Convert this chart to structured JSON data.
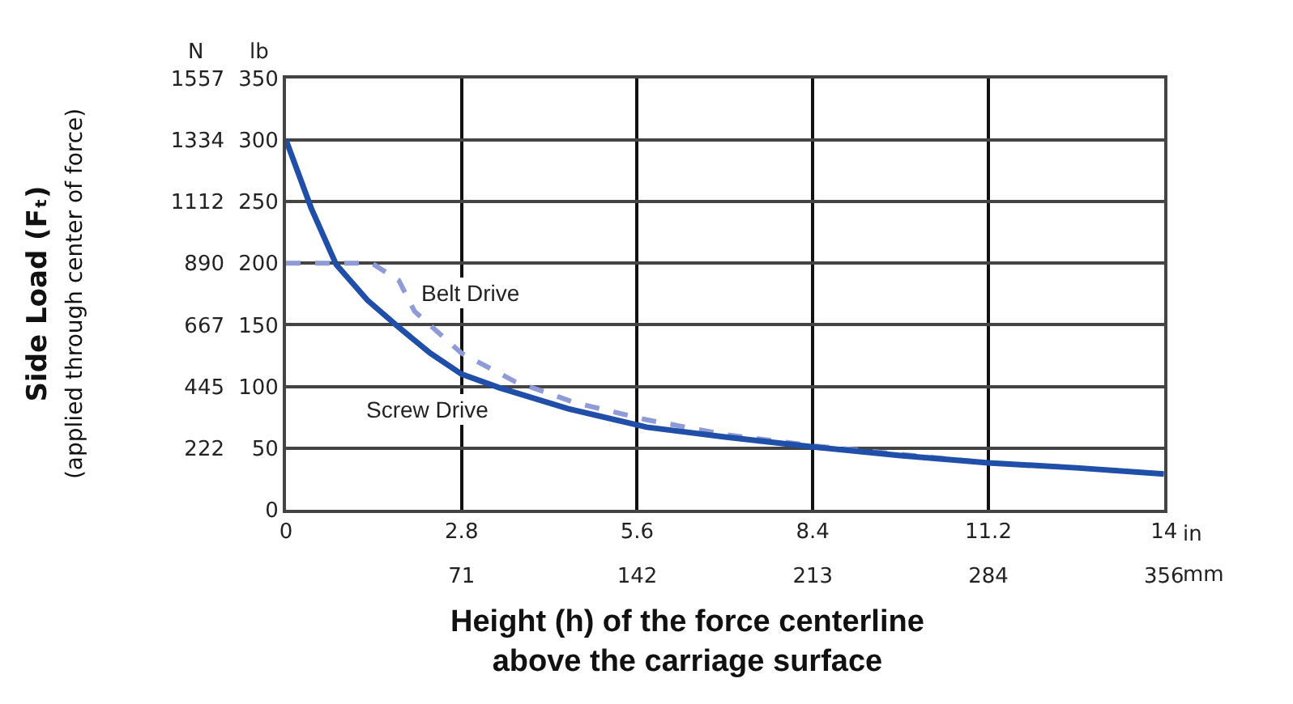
{
  "chart_data": {
    "type": "line",
    "xlabel": "Height (h) of the force centerline\nabove the carriage surface",
    "ylabel": "Side Load (Fₜ)\n(applied through center of force)",
    "x2label": "mm",
    "y2label": "lb",
    "annotations": [
      "in",
      "N",
      "Belt Drive",
      "Screw Drive"
    ],
    "series": [
      {
        "color": "#8f9bd6",
        "line_style": "dashed",
        "axis": "y2",
        "x": [
          0,
          1.37,
          1.8,
          2.05,
          2.8,
          3.65,
          4.6,
          5.75,
          7,
          8.4,
          9.8,
          11.2,
          12.6,
          14
        ],
        "values": [
          200,
          200,
          186,
          161,
          127,
          104,
          87,
          73,
          61,
          52,
          45,
          38,
          34,
          29
        ]
      },
      {
        "color": "#1f4fa8",
        "line_style": "solid",
        "axis": "y2",
        "x": [
          0,
          0.4,
          0.8,
          1.3,
          1.8,
          2.3,
          2.8,
          3.4,
          4.5,
          5.75,
          7,
          8.4,
          9.8,
          11.2,
          12.6,
          14
        ],
        "values": [
          300,
          245,
          199,
          170,
          148,
          127,
          110,
          99,
          82,
          67,
          59,
          51,
          44,
          38,
          34,
          29
        ]
      }
    ],
    "xlim": [
      0,
      14
    ],
    "xticks": [
      0,
      2.8,
      5.6,
      8.4,
      11.2,
      14
    ],
    "x2lim": [
      0,
      355.6
    ],
    "x2ticks": [
      {
        "value": 71.12,
        "label": "71"
      },
      {
        "value": 142.24,
        "label": "142"
      },
      {
        "value": 213.36,
        "label": "213"
      },
      {
        "value": 284.48,
        "label": "284"
      },
      {
        "value": 355.6,
        "label": "356"
      }
    ],
    "y2lim": [
      0,
      350
    ],
    "y2ticks": [
      0,
      50,
      100,
      150,
      200,
      250,
      300,
      350
    ],
    "ylim": [
      0,
      1556.8
    ],
    "yticks": [
      {
        "value": 222.4,
        "label": "222"
      },
      {
        "value": 444.8,
        "label": "445"
      },
      {
        "value": 667.2,
        "label": "667"
      },
      {
        "value": 889.6,
        "label": "890"
      },
      {
        "value": 1112,
        "label": "1112"
      },
      {
        "value": 1334.4,
        "label": "1334"
      },
      {
        "value": 1556.8,
        "label": "1557"
      }
    ],
    "grid": true,
    "marker": "none"
  }
}
